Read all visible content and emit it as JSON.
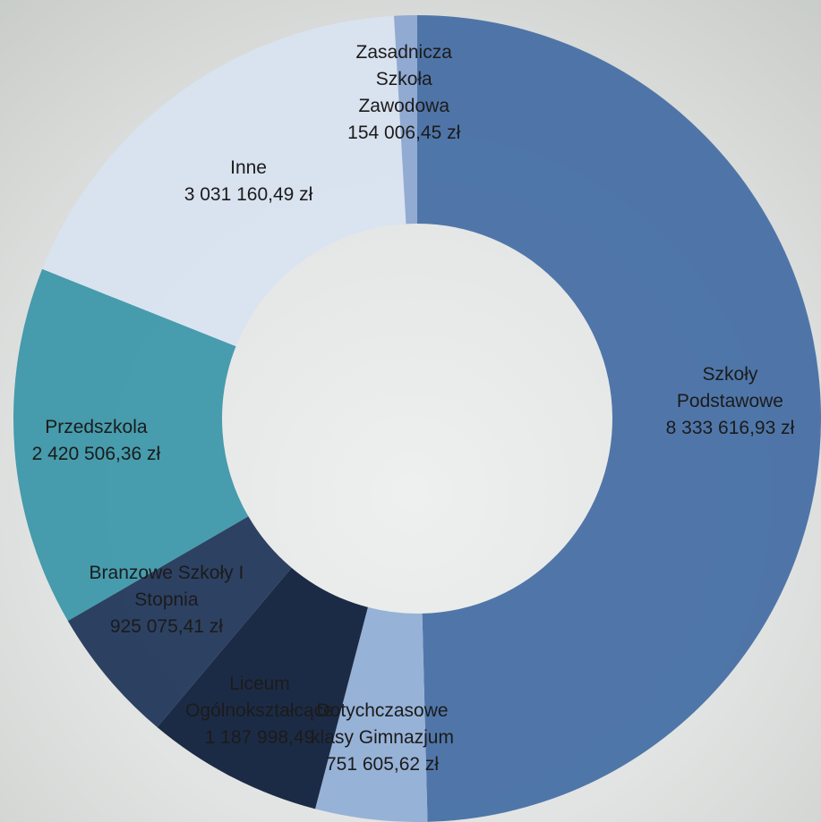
{
  "chart_data": {
    "type": "donut",
    "categories": [
      "Szkoły Podstawowe",
      "Dotychczasowe klasy Gimnazjum",
      "Liceum Ogólnokształcące",
      "Branzowe Szkoły I Stopnia",
      "Przedszkola",
      "Inne",
      "Zasadnicza Szkoła Zawodowa"
    ],
    "values": [
      8333616.93,
      751605.62,
      1187998.49,
      925075.41,
      2420506.36,
      3031160.49,
      154006.45
    ],
    "value_labels": [
      "8 333 616,93 zł",
      "751 605,62 zł",
      "1 187 998,49",
      "925 075,41 zł",
      "2 420 506,36 zł",
      "3 031 160,49 zł",
      "154 006,45 zł"
    ],
    "colors": [
      "#4a72a6",
      "#94b0d6",
      "#15243f",
      "#263b5d",
      "#4199aa",
      "#d9e2f0",
      "#8ea8d2"
    ]
  }
}
